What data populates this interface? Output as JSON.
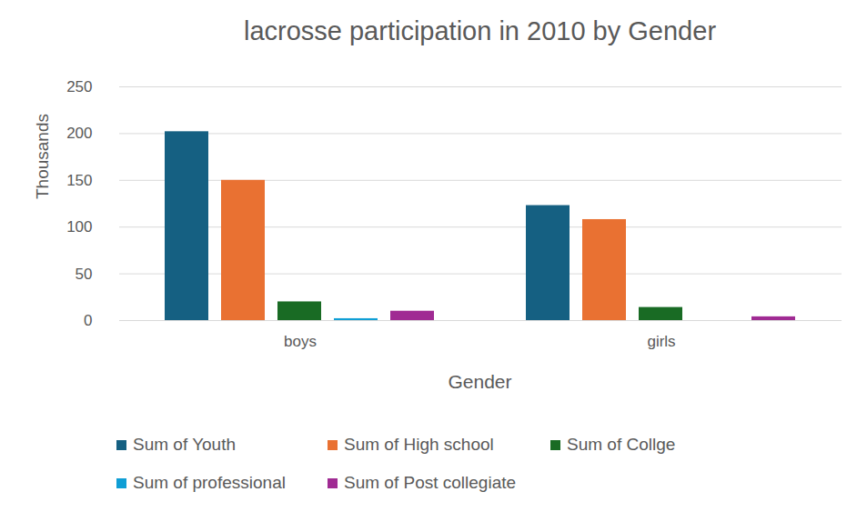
{
  "chart_data": {
    "type": "bar",
    "title": "lacrosse participation in 2010 by Gender",
    "x_label": "Gender",
    "y_label": "Thousands",
    "categories": [
      "boys",
      "girls"
    ],
    "series": [
      {
        "name": "Sum of Youth",
        "color": "#156082",
        "values": [
          202,
          123
        ]
      },
      {
        "name": "Sum of High school",
        "color": "#e97132",
        "values": [
          150,
          108
        ]
      },
      {
        "name": "Sum of Collge",
        "color": "#196b24",
        "values": [
          20,
          14
        ]
      },
      {
        "name": "Sum of professional",
        "color": "#0f9ed5",
        "values": [
          2,
          null
        ]
      },
      {
        "name": "Sum of Post collegiate",
        "color": "#a02b93",
        "values": [
          10,
          4
        ]
      }
    ],
    "ylim": [
      0,
      250
    ],
    "yticks": [
      0,
      50,
      100,
      150,
      200,
      250
    ],
    "grid": true,
    "legend": "bottom"
  }
}
